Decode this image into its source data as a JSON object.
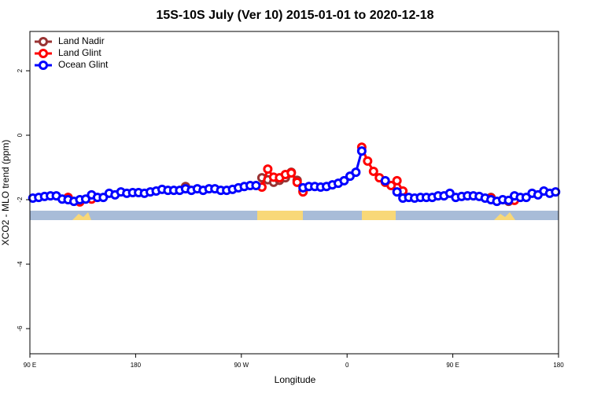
{
  "chart_data": {
    "type": "line",
    "title": "15S-10S July (Ver 10)   2015-01-01 to 2020-12-18",
    "x_label": "Longitude",
    "y_label": "XCO2 - MLO trend (ppm)",
    "x": [
      92.5,
      97.5,
      102.5,
      107.5,
      112.5,
      117.5,
      122.5,
      127.5,
      132.5,
      137.5,
      142.5,
      147.5,
      152.5,
      157.5,
      162.5,
      167.5,
      172.5,
      177.5,
      182.5,
      187.5,
      192.5,
      197.5,
      202.5,
      207.5,
      212.5,
      217.5,
      222.5,
      227.5,
      232.5,
      237.5,
      242.5,
      247.5,
      252.5,
      257.5,
      262.5,
      267.5,
      272.5,
      277.5,
      282.5,
      287.5,
      292.5,
      297.5,
      302.5,
      307.5,
      312.5,
      317.5,
      322.5,
      327.5,
      332.5,
      337.5,
      342.5,
      347.5,
      352.5,
      357.5,
      362.5,
      367.5,
      372.5,
      377.5,
      382.5,
      387.5,
      392.5,
      397.5,
      402.5,
      407.5,
      412.5,
      417.5,
      422.5,
      427.5,
      432.5,
      437.5,
      442.5,
      447.5,
      452.5,
      457.5,
      462.5,
      467.5,
      472.5,
      477.5,
      482.5,
      487.5,
      492.5,
      497.5,
      502.5,
      507.5,
      512.5,
      517.5,
      522.5,
      527.5,
      532.5,
      537.5
    ],
    "series": [
      {
        "name": "Land Nadir",
        "color": "#993333",
        "values": [
          null,
          null,
          null,
          null,
          null,
          null,
          -1.93,
          null,
          null,
          null,
          null,
          null,
          null,
          null,
          null,
          null,
          null,
          null,
          null,
          null,
          null,
          null,
          null,
          null,
          null,
          null,
          -1.59,
          null,
          null,
          null,
          null,
          null,
          null,
          null,
          null,
          null,
          null,
          null,
          null,
          -1.32,
          -1.38,
          -1.46,
          -1.4,
          -1.32,
          -1.15,
          -1.4,
          -1.73,
          null,
          null,
          null,
          null,
          null,
          null,
          null,
          null,
          null,
          null,
          null,
          null,
          null,
          null,
          null,
          null,
          null,
          null,
          null,
          null,
          null,
          null,
          null,
          null,
          null,
          null,
          null,
          null,
          null,
          null,
          null,
          -1.93,
          null,
          null,
          -2.05,
          null,
          null,
          null,
          null,
          null,
          null,
          null,
          null
        ]
      },
      {
        "name": "Land Glint",
        "color": "#ff0000",
        "values": [
          null,
          null,
          null,
          null,
          null,
          null,
          -1.93,
          null,
          -2.07,
          null,
          -1.98,
          null,
          null,
          null,
          null,
          null,
          null,
          null,
          null,
          null,
          null,
          null,
          null,
          null,
          null,
          null,
          null,
          null,
          null,
          null,
          null,
          null,
          null,
          null,
          null,
          null,
          null,
          null,
          null,
          -1.61,
          -1.05,
          -1.3,
          -1.32,
          -1.22,
          -1.17,
          -1.46,
          -1.76,
          null,
          null,
          null,
          null,
          null,
          null,
          null,
          null,
          null,
          -0.37,
          -0.8,
          -1.12,
          -1.32,
          -1.46,
          -1.56,
          -1.41,
          -1.73,
          null,
          null,
          null,
          null,
          null,
          null,
          null,
          null,
          null,
          null,
          null,
          null,
          null,
          null,
          -1.95,
          null,
          null,
          null,
          -2.02,
          null,
          null,
          null,
          null,
          null,
          null,
          null
        ]
      },
      {
        "name": "Ocean Glint",
        "color": "#0000ff",
        "values": [
          -1.95,
          -1.93,
          -1.9,
          -1.88,
          -1.88,
          -1.98,
          -2.0,
          -2.05,
          -2.0,
          -1.98,
          -1.85,
          -1.93,
          -1.93,
          -1.8,
          -1.85,
          -1.76,
          -1.8,
          -1.78,
          -1.78,
          -1.8,
          -1.76,
          -1.73,
          -1.68,
          -1.71,
          -1.71,
          -1.71,
          -1.66,
          -1.71,
          -1.66,
          -1.71,
          -1.66,
          -1.66,
          -1.71,
          -1.71,
          -1.68,
          -1.63,
          -1.59,
          -1.56,
          -1.56,
          null,
          null,
          null,
          null,
          null,
          null,
          null,
          -1.63,
          -1.59,
          -1.59,
          -1.61,
          -1.59,
          -1.54,
          -1.49,
          -1.41,
          -1.27,
          -1.15,
          -0.49,
          null,
          null,
          null,
          -1.41,
          null,
          -1.76,
          -1.95,
          -1.93,
          -1.95,
          -1.93,
          -1.93,
          -1.93,
          -1.88,
          -1.88,
          -1.8,
          -1.93,
          -1.9,
          -1.88,
          -1.88,
          -1.9,
          -1.95,
          -2.0,
          -2.05,
          -2.0,
          -2.02,
          -1.88,
          -1.93,
          -1.93,
          -1.8,
          -1.85,
          -1.73,
          -1.8,
          -1.76
        ]
      }
    ],
    "xlim": [
      90,
      540
    ],
    "xticks": [
      {
        "value": 90,
        "label": "90 E"
      },
      180,
      {
        "value": 270,
        "label": "90 W"
      },
      {
        "value": 360,
        "label": "0"
      },
      {
        "value": 450,
        "label": "90 E"
      },
      {
        "value": 540,
        "label": "180"
      }
    ],
    "ylim": [
      -6.78,
      3.22
    ],
    "yticks": [
      -6,
      -4,
      -2,
      0,
      2
    ],
    "legend": "top-left"
  }
}
